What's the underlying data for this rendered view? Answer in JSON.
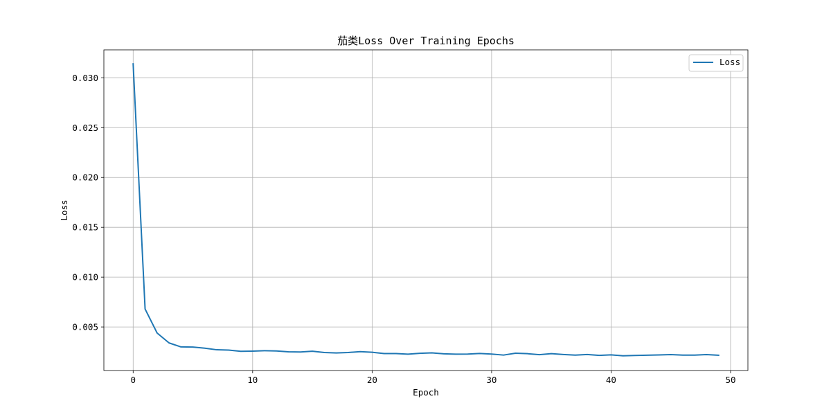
{
  "chart_data": {
    "type": "line",
    "title": "茄类Loss Over Training Epochs",
    "xlabel": "Epoch",
    "ylabel": "Loss",
    "xlim": [
      -2.45,
      51.45
    ],
    "ylim": [
      0.00063,
      0.0328
    ],
    "xticks": [
      0,
      10,
      20,
      30,
      40,
      50
    ],
    "yticks": [
      0.005,
      0.01,
      0.015,
      0.02,
      0.025,
      0.03
    ],
    "ytick_labels": [
      "0.005",
      "0.010",
      "0.015",
      "0.020",
      "0.025",
      "0.030"
    ],
    "grid": true,
    "legend_position": "top-right",
    "series": [
      {
        "name": "Loss",
        "color": "#1f77b4",
        "x": [
          0,
          1,
          2,
          3,
          4,
          5,
          6,
          7,
          8,
          9,
          10,
          11,
          12,
          13,
          14,
          15,
          16,
          17,
          18,
          19,
          20,
          21,
          22,
          23,
          24,
          25,
          26,
          27,
          28,
          29,
          30,
          31,
          32,
          33,
          34,
          35,
          36,
          37,
          38,
          39,
          40,
          41,
          42,
          43,
          44,
          45,
          46,
          47,
          48,
          49
        ],
        "y": [
          0.0314,
          0.0068,
          0.0044,
          0.0034,
          0.003,
          0.00298,
          0.00287,
          0.00271,
          0.00268,
          0.00256,
          0.00258,
          0.00262,
          0.00259,
          0.00251,
          0.00249,
          0.00257,
          0.00244,
          0.00239,
          0.00244,
          0.00252,
          0.00246,
          0.00233,
          0.00233,
          0.00227,
          0.00236,
          0.0024,
          0.00231,
          0.00227,
          0.00228,
          0.00234,
          0.00228,
          0.00218,
          0.00237,
          0.00232,
          0.00222,
          0.00232,
          0.00224,
          0.00218,
          0.00224,
          0.00215,
          0.0022,
          0.00211,
          0.00214,
          0.00217,
          0.00219,
          0.00223,
          0.00218,
          0.00218,
          0.00223,
          0.00216
        ]
      }
    ]
  }
}
